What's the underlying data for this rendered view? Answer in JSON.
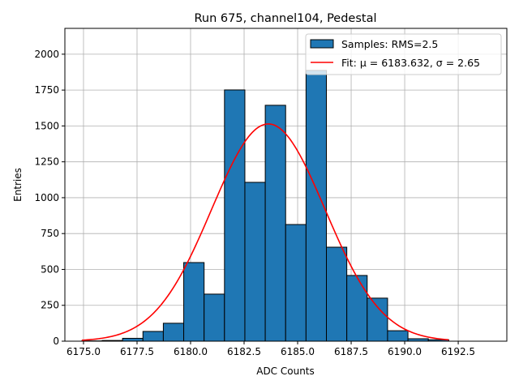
{
  "chart_data": {
    "type": "bar",
    "title": "Run 675, channel104, Pedestal",
    "xlabel": "ADC Counts",
    "ylabel": "Entries",
    "xlim": [
      6174.13,
      6194.77
    ],
    "ylim": [
      0,
      2180
    ],
    "grid": true,
    "legend_placement": "top-right",
    "xticks": [
      6175.0,
      6177.5,
      6180.0,
      6182.5,
      6185.0,
      6187.5,
      6190.0,
      6192.5
    ],
    "xtick_labels": [
      "6175.0",
      "6177.5",
      "6180.0",
      "6182.5",
      "6185.0",
      "6187.5",
      "6190.0",
      "6192.5"
    ],
    "yticks": [
      0,
      250,
      500,
      750,
      1000,
      1250,
      1500,
      1750,
      2000
    ],
    "ytick_labels": [
      "0",
      "250",
      "500",
      "750",
      "1000",
      "1250",
      "1500",
      "1750",
      "2000"
    ],
    "histogram": {
      "name": "Samples: RMS=2.5",
      "bin_start": 6174.92,
      "bin_width": 0.952,
      "counts": [
        2,
        5,
        20,
        68,
        125,
        548,
        328,
        1751,
        1107,
        1644,
        813,
        1887,
        655,
        458,
        300,
        73,
        17,
        10
      ],
      "color": "#1f77b4"
    },
    "fit": {
      "name": "Fit: μ = 6183.632, σ = 2.65",
      "mu": 6183.632,
      "sigma": 2.65,
      "amplitude": 1514,
      "x_range": [
        6174.92,
        6192.05
      ],
      "color": "#ff0000"
    }
  }
}
